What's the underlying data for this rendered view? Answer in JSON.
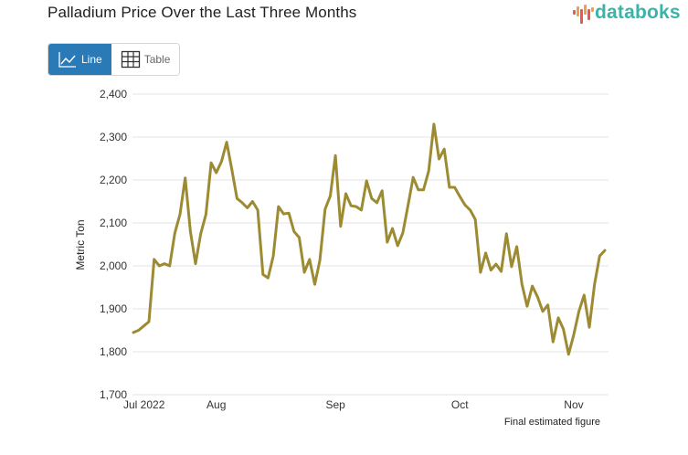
{
  "header": {
    "title": "Palladium Price Over the Last Three Months",
    "logo_text": "databoks",
    "logo_icon": "bar-wave-icon"
  },
  "toggle": {
    "line_label": "Line",
    "line_icon": "line-chart-icon",
    "table_label": "Table",
    "table_icon": "table-grid-icon",
    "active": "Line"
  },
  "colors": {
    "line": "#9c8b33",
    "grid": "#e3e3e3",
    "toggle_active": "#2a7ab8",
    "logo_text": "#3bb3a8",
    "logo_red": "#e85a4f",
    "logo_orange": "#f0a04b"
  },
  "chart_data": {
    "type": "line",
    "title": "Palladium Price Over the Last Three Months",
    "xlabel": "",
    "ylabel": "Metric Ton",
    "ylim": [
      1700,
      2400
    ],
    "yticks": [
      "1,700",
      "1,800",
      "1,900",
      "2,000",
      "2,100",
      "2,200",
      "2,300",
      "2,400"
    ],
    "ytick_values": [
      1700,
      1800,
      1900,
      2000,
      2100,
      2200,
      2300,
      2400
    ],
    "xticks": [
      {
        "label": "Jul 2022",
        "index": 0
      },
      {
        "label": "Aug",
        "index": 16
      },
      {
        "label": "Sep",
        "index": 39
      },
      {
        "label": "Oct",
        "index": 63
      },
      {
        "label": "Nov",
        "index": 85
      }
    ],
    "grid": true,
    "legend": "none",
    "annotation": "Final estimated figure",
    "series": [
      {
        "name": "Palladium",
        "values": [
          1845,
          1850,
          1860,
          1870,
          2015,
          2000,
          2005,
          2000,
          2077,
          2120,
          2205,
          2080,
          2005,
          2075,
          2120,
          2240,
          2217,
          2243,
          2288,
          2225,
          2157,
          2147,
          2135,
          2150,
          2130,
          1980,
          1972,
          2023,
          2138,
          2121,
          2123,
          2080,
          2066,
          1985,
          2015,
          1957,
          2013,
          2132,
          2163,
          2257,
          2092,
          2168,
          2140,
          2138,
          2130,
          2198,
          2157,
          2147,
          2175,
          2055,
          2087,
          2047,
          2077,
          2140,
          2206,
          2177,
          2177,
          2221,
          2330,
          2249,
          2272,
          2183,
          2183,
          2162,
          2142,
          2130,
          2108,
          1985,
          2030,
          1990,
          2004,
          1987,
          2075,
          1998,
          2045,
          1957,
          1906,
          1953,
          1928,
          1894,
          1909,
          1823,
          1879,
          1853,
          1794,
          1840,
          1894,
          1932,
          1857,
          1957,
          2023,
          2036
        ]
      }
    ]
  }
}
